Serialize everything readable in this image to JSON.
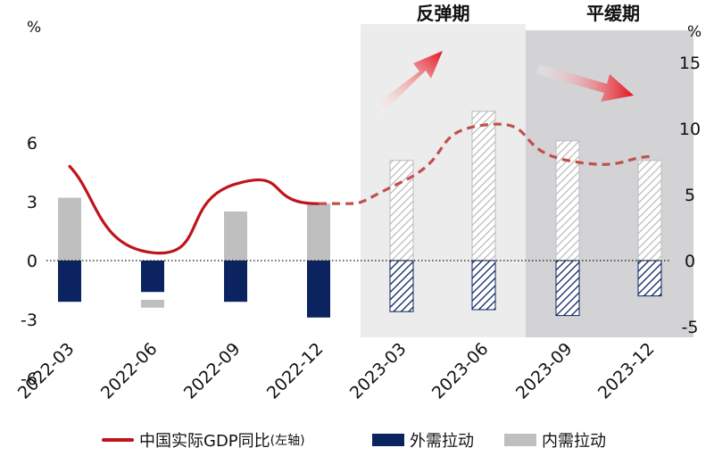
{
  "chart_data": {
    "type": "bar+line",
    "categories": [
      "2022-03",
      "2022-06",
      "2022-09",
      "2022-12",
      "2023-03",
      "2023-06",
      "2023-09",
      "2023-12"
    ],
    "left_axis": {
      "unit": "%",
      "ticks": [
        "6",
        "3",
        "0",
        "-3",
        "-6"
      ],
      "ylim": [
        -6,
        9.5
      ]
    },
    "right_axis": {
      "unit": "%",
      "ticks": [
        "15",
        "10",
        "5",
        "0",
        "-5"
      ],
      "ylim": [
        -5.5,
        17.5
      ]
    },
    "line_series": {
      "name": "中国实际GDP同比",
      "name_suffix": "(左轴)",
      "axis": "left",
      "values": [
        4.8,
        0.4,
        3.9,
        2.9,
        4.0,
        6.9,
        5.1,
        5.3
      ],
      "projected_from_index": 3,
      "color": "#c0141b"
    },
    "bar_series": [
      {
        "name": "外需拉动",
        "color": "#0b2460",
        "values": [
          -2.1,
          -2.0,
          -2.1,
          -2.9,
          -2.6,
          -2.5,
          -2.8,
          -1.8
        ]
      },
      {
        "name": "内需拉动",
        "color": "#bfbfbf",
        "values": [
          3.2,
          -0.4,
          2.5,
          2.9,
          5.1,
          7.6,
          6.1,
          5.1
        ]
      }
    ],
    "bands": [
      {
        "label": "反弹期",
        "from": "2023-03",
        "to": "2023-06",
        "color": "#ececec"
      },
      {
        "label": "平缓期",
        "from": "2023-09",
        "to": "2023-12",
        "color": "#d3d3d6"
      }
    ],
    "grid": false,
    "legend_position": "bottom"
  }
}
